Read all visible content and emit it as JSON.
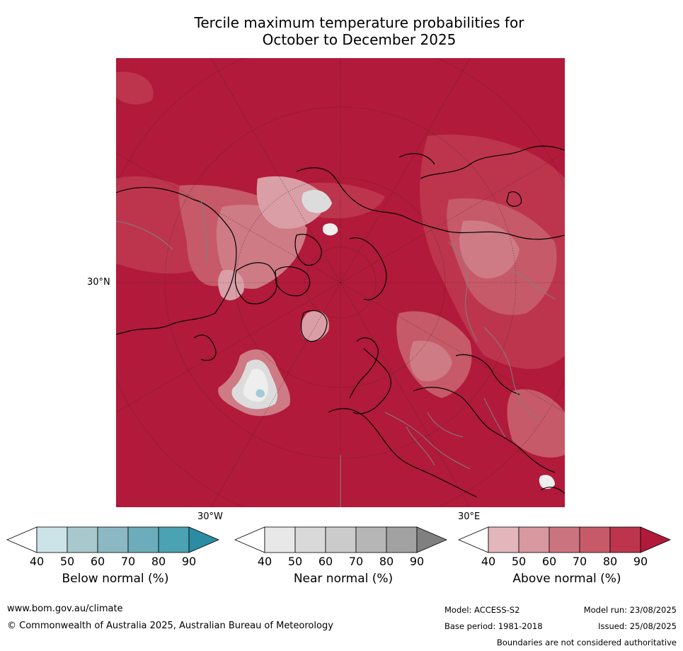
{
  "title": {
    "line1": "Tercile maximum temperature probabilities for",
    "line2": "October to December 2025"
  },
  "map": {
    "labels": {
      "lat_30n": "30°N",
      "lon_30w": "30°W",
      "lon_30e": "30°E"
    },
    "colors": {
      "above_90": "#b11a3a",
      "above_80": "#bd354d",
      "above_70": "#c65a68",
      "above_60": "#ce7b85",
      "above_50": "#d99ea6",
      "near_50": "#dcdcdc",
      "near_40": "#eeeeee",
      "below_50": "#a6c9d6",
      "coast": "#000000",
      "borders": "#808080"
    }
  },
  "legends": [
    {
      "title": "Below normal (%)",
      "ticks": [
        "40",
        "50",
        "60",
        "70",
        "80",
        "90"
      ],
      "colors": [
        "#ffffff",
        "#cce3e8",
        "#a8c8cd",
        "#8cb8c3",
        "#6cacbb",
        "#4aa2b2",
        "#2b8ca3"
      ]
    },
    {
      "title": "Near normal (%)",
      "ticks": [
        "40",
        "50",
        "60",
        "70",
        "80",
        "90"
      ],
      "colors": [
        "#ffffff",
        "#e8e8e8",
        "#d9d9d9",
        "#cbcbcb",
        "#b6b6b6",
        "#a2a2a2",
        "#808080"
      ]
    },
    {
      "title": "Above normal (%)",
      "ticks": [
        "40",
        "50",
        "60",
        "70",
        "80",
        "90"
      ],
      "colors": [
        "#ffffff",
        "#e2b6bb",
        "#d898a0",
        "#cb747f",
        "#c65a69",
        "#bd354d",
        "#b11a3a"
      ]
    }
  ],
  "footer": {
    "url": "www.bom.gov.au/climate",
    "copyright": "© Commonwealth of Australia 2025, Australian Bureau of Meteorology",
    "model": "Model: ACCESS-S2",
    "model_run": "Model run: 23/08/2025",
    "base_period": "Base period: 1981-2018",
    "issued": "Issued: 25/08/2025",
    "disclaimer": "Boundaries are not considered authoritative"
  }
}
